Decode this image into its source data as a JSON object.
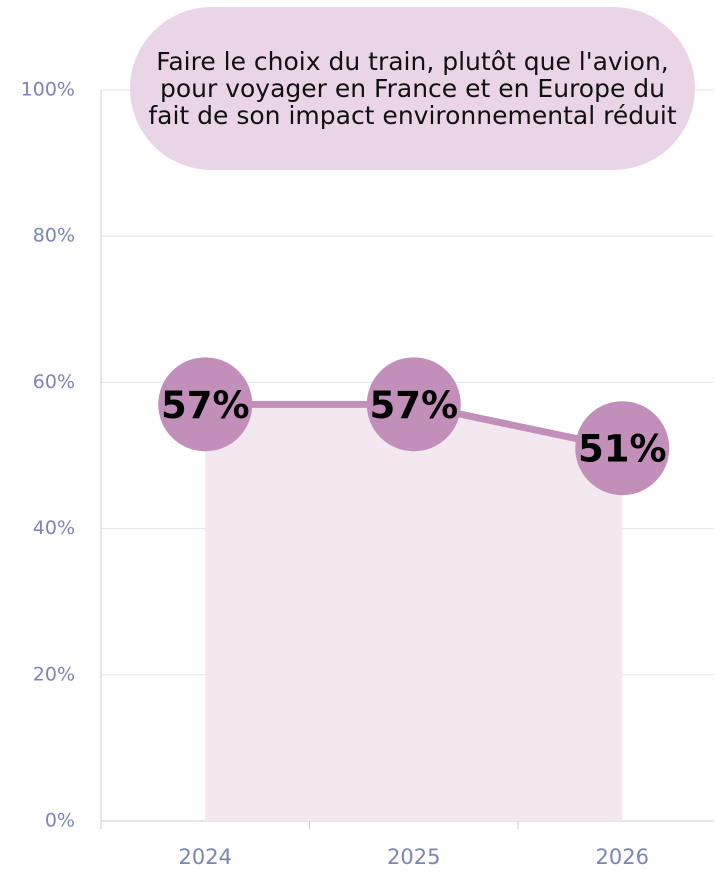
{
  "chart_data": {
    "type": "line",
    "title": "Faire le choix du train, plutôt que l'avion, pour voyager en France et en Europe du fait de son impact environnemental réduit",
    "categories": [
      "2024",
      "2025",
      "2026"
    ],
    "series": [
      {
        "name": null,
        "color": "#c28fba",
        "values": [
          57,
          57,
          51
        ],
        "value_labels": [
          "57%",
          "57%",
          "51%"
        ]
      }
    ],
    "area_color": "#f3e7f0",
    "ylim": [
      0,
      100
    ],
    "yticks": [
      {
        "value": 0,
        "label": "0%"
      },
      {
        "value": 20,
        "label": "20%"
      },
      {
        "value": 40,
        "label": "40%"
      },
      {
        "value": 60,
        "label": "60%"
      },
      {
        "value": 80,
        "label": "80%"
      },
      {
        "value": 100,
        "label": "100%"
      }
    ],
    "grid": true
  }
}
